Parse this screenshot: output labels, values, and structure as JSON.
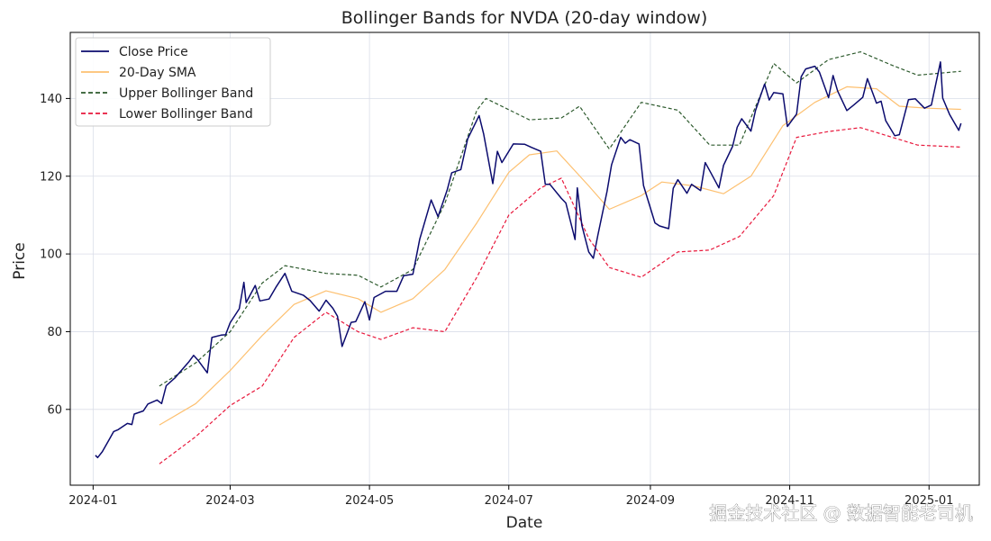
{
  "chart_data": {
    "type": "line",
    "title": "Bollinger Bands for NVDA (20-day window)",
    "xlabel": "Date",
    "ylabel": "Price",
    "x_range": [
      "2023-12-22",
      "2025-01-23"
    ],
    "ylim": [
      40.5,
      157
    ],
    "x_ticks": [
      "2024-01",
      "2024-03",
      "2024-05",
      "2024-07",
      "2024-09",
      "2024-11",
      "2025-01"
    ],
    "y_ticks": [
      60,
      80,
      100,
      120,
      140
    ],
    "grid": true,
    "legend_position": "top-left",
    "series": [
      {
        "name": "Close Price",
        "color": "#0b0b6e",
        "style": "solid",
        "points": [
          [
            "2024-01-02",
            48.2
          ],
          [
            "2024-01-03",
            47.6
          ],
          [
            "2024-01-05",
            49.1
          ],
          [
            "2024-01-08",
            52.2
          ],
          [
            "2024-01-10",
            54.3
          ],
          [
            "2024-01-12",
            54.8
          ],
          [
            "2024-01-16",
            56.4
          ],
          [
            "2024-01-18",
            56.1
          ],
          [
            "2024-01-19",
            58.8
          ],
          [
            "2024-01-23",
            59.6
          ],
          [
            "2024-01-25",
            61.4
          ],
          [
            "2024-01-29",
            62.4
          ],
          [
            "2024-01-31",
            61.5
          ],
          [
            "2024-02-02",
            66.1
          ],
          [
            "2024-02-06",
            68.2
          ],
          [
            "2024-02-08",
            69.6
          ],
          [
            "2024-02-12",
            72.3
          ],
          [
            "2024-02-14",
            73.9
          ],
          [
            "2024-02-16",
            72.6
          ],
          [
            "2024-02-20",
            69.4
          ],
          [
            "2024-02-22",
            78.5
          ],
          [
            "2024-02-26",
            79.1
          ],
          [
            "2024-02-28",
            79.2
          ],
          [
            "2024-03-01",
            82.3
          ],
          [
            "2024-03-05",
            85.9
          ],
          [
            "2024-03-07",
            92.7
          ],
          [
            "2024-03-08",
            87.5
          ],
          [
            "2024-03-12",
            91.9
          ],
          [
            "2024-03-14",
            87.9
          ],
          [
            "2024-03-18",
            88.4
          ],
          [
            "2024-03-21",
            91.4
          ],
          [
            "2024-03-25",
            95.0
          ],
          [
            "2024-03-28",
            90.4
          ],
          [
            "2024-04-02",
            89.4
          ],
          [
            "2024-04-05",
            88.0
          ],
          [
            "2024-04-09",
            85.3
          ],
          [
            "2024-04-12",
            88.1
          ],
          [
            "2024-04-15",
            86.0
          ],
          [
            "2024-04-17",
            84.0
          ],
          [
            "2024-04-19",
            76.2
          ],
          [
            "2024-04-23",
            82.4
          ],
          [
            "2024-04-25",
            82.6
          ],
          [
            "2024-04-29",
            87.7
          ],
          [
            "2024-05-01",
            83.0
          ],
          [
            "2024-05-03",
            88.8
          ],
          [
            "2024-05-08",
            90.4
          ],
          [
            "2024-05-13",
            90.4
          ],
          [
            "2024-05-16",
            94.4
          ],
          [
            "2024-05-20",
            94.8
          ],
          [
            "2024-05-23",
            103.8
          ],
          [
            "2024-05-28",
            113.9
          ],
          [
            "2024-05-31",
            109.6
          ],
          [
            "2024-06-04",
            116.4
          ],
          [
            "2024-06-06",
            120.9
          ],
          [
            "2024-06-10",
            121.7
          ],
          [
            "2024-06-13",
            129.6
          ],
          [
            "2024-06-18",
            135.6
          ],
          [
            "2024-06-20",
            130.8
          ],
          [
            "2024-06-24",
            118.1
          ],
          [
            "2024-06-26",
            126.4
          ],
          [
            "2024-06-28",
            123.5
          ],
          [
            "2024-07-03",
            128.3
          ],
          [
            "2024-07-08",
            128.2
          ],
          [
            "2024-07-11",
            127.4
          ],
          [
            "2024-07-15",
            126.4
          ],
          [
            "2024-07-17",
            117.9
          ],
          [
            "2024-07-19",
            117.9
          ],
          [
            "2024-07-24",
            114.3
          ],
          [
            "2024-07-26",
            113.1
          ],
          [
            "2024-07-30",
            103.7
          ],
          [
            "2024-07-31",
            117.0
          ],
          [
            "2024-08-02",
            107.3
          ],
          [
            "2024-08-05",
            100.5
          ],
          [
            "2024-08-07",
            98.9
          ],
          [
            "2024-08-09",
            104.8
          ],
          [
            "2024-08-13",
            116.1
          ],
          [
            "2024-08-15",
            122.9
          ],
          [
            "2024-08-19",
            130.0
          ],
          [
            "2024-08-21",
            128.5
          ],
          [
            "2024-08-23",
            129.4
          ],
          [
            "2024-08-27",
            128.3
          ],
          [
            "2024-08-29",
            117.6
          ],
          [
            "2024-09-03",
            108.0
          ],
          [
            "2024-09-05",
            107.2
          ],
          [
            "2024-09-09",
            106.5
          ],
          [
            "2024-09-11",
            116.9
          ],
          [
            "2024-09-13",
            119.1
          ],
          [
            "2024-09-17",
            115.6
          ],
          [
            "2024-09-19",
            117.9
          ],
          [
            "2024-09-23",
            116.3
          ],
          [
            "2024-09-25",
            123.5
          ],
          [
            "2024-09-27",
            121.4
          ],
          [
            "2024-10-01",
            117.0
          ],
          [
            "2024-10-03",
            122.8
          ],
          [
            "2024-10-07",
            127.7
          ],
          [
            "2024-10-09",
            132.6
          ],
          [
            "2024-10-11",
            134.8
          ],
          [
            "2024-10-15",
            131.6
          ],
          [
            "2024-10-17",
            136.9
          ],
          [
            "2024-10-21",
            143.7
          ],
          [
            "2024-10-23",
            139.6
          ],
          [
            "2024-10-25",
            141.5
          ],
          [
            "2024-10-29",
            141.2
          ],
          [
            "2024-10-31",
            132.8
          ],
          [
            "2024-11-04",
            136.0
          ],
          [
            "2024-11-06",
            145.6
          ],
          [
            "2024-11-08",
            147.6
          ],
          [
            "2024-11-12",
            148.3
          ],
          [
            "2024-11-14",
            146.8
          ],
          [
            "2024-11-18",
            140.2
          ],
          [
            "2024-11-20",
            145.9
          ],
          [
            "2024-11-22",
            141.9
          ],
          [
            "2024-11-26",
            136.9
          ],
          [
            "2024-11-29",
            138.3
          ],
          [
            "2024-12-03",
            140.3
          ],
          [
            "2024-12-05",
            145.1
          ],
          [
            "2024-12-09",
            138.8
          ],
          [
            "2024-12-11",
            139.3
          ],
          [
            "2024-12-13",
            134.3
          ],
          [
            "2024-12-17",
            130.4
          ],
          [
            "2024-12-19",
            130.7
          ],
          [
            "2024-12-23",
            139.7
          ],
          [
            "2024-12-26",
            139.9
          ],
          [
            "2024-12-30",
            137.5
          ],
          [
            "2025-01-02",
            138.3
          ],
          [
            "2025-01-06",
            149.4
          ],
          [
            "2025-01-07",
            140.1
          ],
          [
            "2025-01-10",
            135.9
          ],
          [
            "2025-01-14",
            131.8
          ],
          [
            "2025-01-15",
            133.6
          ]
        ]
      },
      {
        "name": "20-Day SMA",
        "color": "#fdc070",
        "style": "solid",
        "points": [
          [
            "2024-01-30",
            56.0
          ],
          [
            "2024-02-15",
            61.5
          ],
          [
            "2024-03-01",
            70.0
          ],
          [
            "2024-03-15",
            79.0
          ],
          [
            "2024-03-29",
            87.0
          ],
          [
            "2024-04-12",
            90.5
          ],
          [
            "2024-04-26",
            88.5
          ],
          [
            "2024-05-06",
            85.0
          ],
          [
            "2024-05-20",
            88.5
          ],
          [
            "2024-06-03",
            96.0
          ],
          [
            "2024-06-17",
            108.0
          ],
          [
            "2024-07-01",
            121.0
          ],
          [
            "2024-07-10",
            125.5
          ],
          [
            "2024-07-22",
            126.5
          ],
          [
            "2024-08-05",
            117.5
          ],
          [
            "2024-08-14",
            111.5
          ],
          [
            "2024-08-28",
            115.0
          ],
          [
            "2024-09-06",
            118.5
          ],
          [
            "2024-09-20",
            117.5
          ],
          [
            "2024-10-03",
            115.5
          ],
          [
            "2024-10-15",
            120.0
          ],
          [
            "2024-10-29",
            133.0
          ],
          [
            "2024-11-12",
            139.0
          ],
          [
            "2024-11-26",
            143.0
          ],
          [
            "2024-12-09",
            142.5
          ],
          [
            "2024-12-19",
            138.0
          ],
          [
            "2024-12-31",
            137.5
          ],
          [
            "2025-01-15",
            137.2
          ]
        ]
      },
      {
        "name": "Upper Bollinger Band",
        "color": "#2d5a2d",
        "style": "dashed",
        "points": [
          [
            "2024-01-30",
            66.0
          ],
          [
            "2024-02-15",
            72.0
          ],
          [
            "2024-03-01",
            80.0
          ],
          [
            "2024-03-15",
            92.5
          ],
          [
            "2024-03-25",
            97.0
          ],
          [
            "2024-04-12",
            95.0
          ],
          [
            "2024-04-26",
            94.5
          ],
          [
            "2024-05-06",
            91.5
          ],
          [
            "2024-05-20",
            96.0
          ],
          [
            "2024-06-03",
            113.0
          ],
          [
            "2024-06-17",
            137.0
          ],
          [
            "2024-06-21",
            140.0
          ],
          [
            "2024-07-10",
            134.5
          ],
          [
            "2024-07-24",
            135.0
          ],
          [
            "2024-08-01",
            138.0
          ],
          [
            "2024-08-14",
            127.0
          ],
          [
            "2024-08-28",
            139.0
          ],
          [
            "2024-09-13",
            137.0
          ],
          [
            "2024-09-27",
            128.0
          ],
          [
            "2024-10-10",
            128.0
          ],
          [
            "2024-10-25",
            149.0
          ],
          [
            "2024-11-04",
            144.0
          ],
          [
            "2024-11-18",
            150.0
          ],
          [
            "2024-12-02",
            152.0
          ],
          [
            "2024-12-16",
            148.5
          ],
          [
            "2024-12-27",
            146.0
          ],
          [
            "2025-01-15",
            147.0
          ]
        ]
      },
      {
        "name": "Lower Bollinger Band",
        "color": "#e8183c",
        "style": "dashed",
        "points": [
          [
            "2024-01-30",
            46.0
          ],
          [
            "2024-02-15",
            53.0
          ],
          [
            "2024-03-01",
            61.0
          ],
          [
            "2024-03-15",
            66.0
          ],
          [
            "2024-03-29",
            78.5
          ],
          [
            "2024-04-12",
            85.0
          ],
          [
            "2024-04-26",
            80.0
          ],
          [
            "2024-05-06",
            78.0
          ],
          [
            "2024-05-20",
            81.0
          ],
          [
            "2024-06-03",
            80.0
          ],
          [
            "2024-06-17",
            94.0
          ],
          [
            "2024-07-01",
            110.0
          ],
          [
            "2024-07-15",
            117.0
          ],
          [
            "2024-07-24",
            119.5
          ],
          [
            "2024-08-05",
            104.0
          ],
          [
            "2024-08-14",
            96.5
          ],
          [
            "2024-08-28",
            94.0
          ],
          [
            "2024-09-13",
            100.5
          ],
          [
            "2024-09-27",
            101.0
          ],
          [
            "2024-10-10",
            104.5
          ],
          [
            "2024-10-25",
            115.0
          ],
          [
            "2024-11-04",
            130.0
          ],
          [
            "2024-11-18",
            131.5
          ],
          [
            "2024-12-02",
            132.5
          ],
          [
            "2024-12-16",
            130.0
          ],
          [
            "2024-12-27",
            128.0
          ],
          [
            "2025-01-15",
            127.5
          ]
        ]
      }
    ]
  },
  "watermark": "掘金技术社区 @ 数据智能老司机"
}
